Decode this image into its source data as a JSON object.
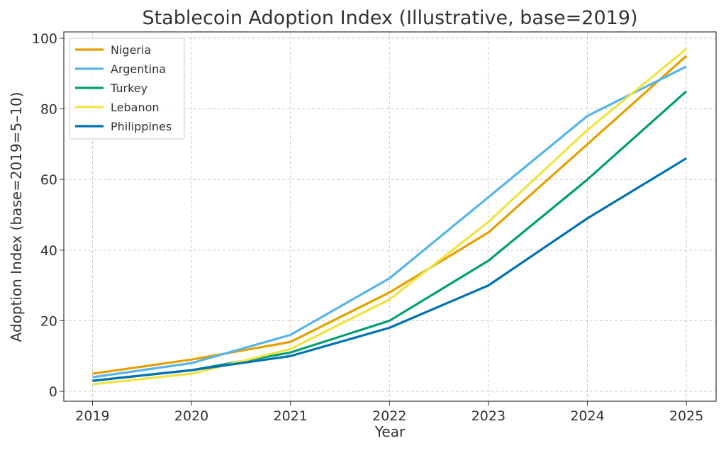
{
  "chart_data": {
    "type": "line",
    "title": "Stablecoin Adoption Index (Illustrative, base=2019)",
    "xlabel": "Year",
    "ylabel": "Adoption Index (base=2019=5–10)",
    "x": [
      2019,
      2020,
      2021,
      2022,
      2023,
      2024,
      2025
    ],
    "xticks": [
      "2019",
      "2020",
      "2021",
      "2022",
      "2023",
      "2024",
      "2025"
    ],
    "yticks": [
      "0",
      "20",
      "40",
      "60",
      "80",
      "100"
    ],
    "xlim": [
      2018.71,
      2025.3
    ],
    "ylim": [
      -2.8,
      101.8
    ],
    "grid": true,
    "legend_position": "top-left",
    "series": [
      {
        "name": "Nigeria",
        "color": "#E69F00",
        "values": [
          5,
          9,
          14,
          28,
          45,
          70,
          95
        ]
      },
      {
        "name": "Argentina",
        "color": "#56B4E9",
        "values": [
          4,
          8,
          16,
          32,
          55,
          78,
          92
        ]
      },
      {
        "name": "Turkey",
        "color": "#009E73",
        "values": [
          3,
          6,
          11,
          20,
          37,
          60,
          85
        ]
      },
      {
        "name": "Lebanon",
        "color": "#F0E442",
        "values": [
          2,
          5,
          12,
          26,
          48,
          74,
          97
        ]
      },
      {
        "name": "Philippines",
        "color": "#0072B2",
        "values": [
          3,
          6,
          10,
          18,
          30,
          49,
          66
        ]
      }
    ]
  }
}
